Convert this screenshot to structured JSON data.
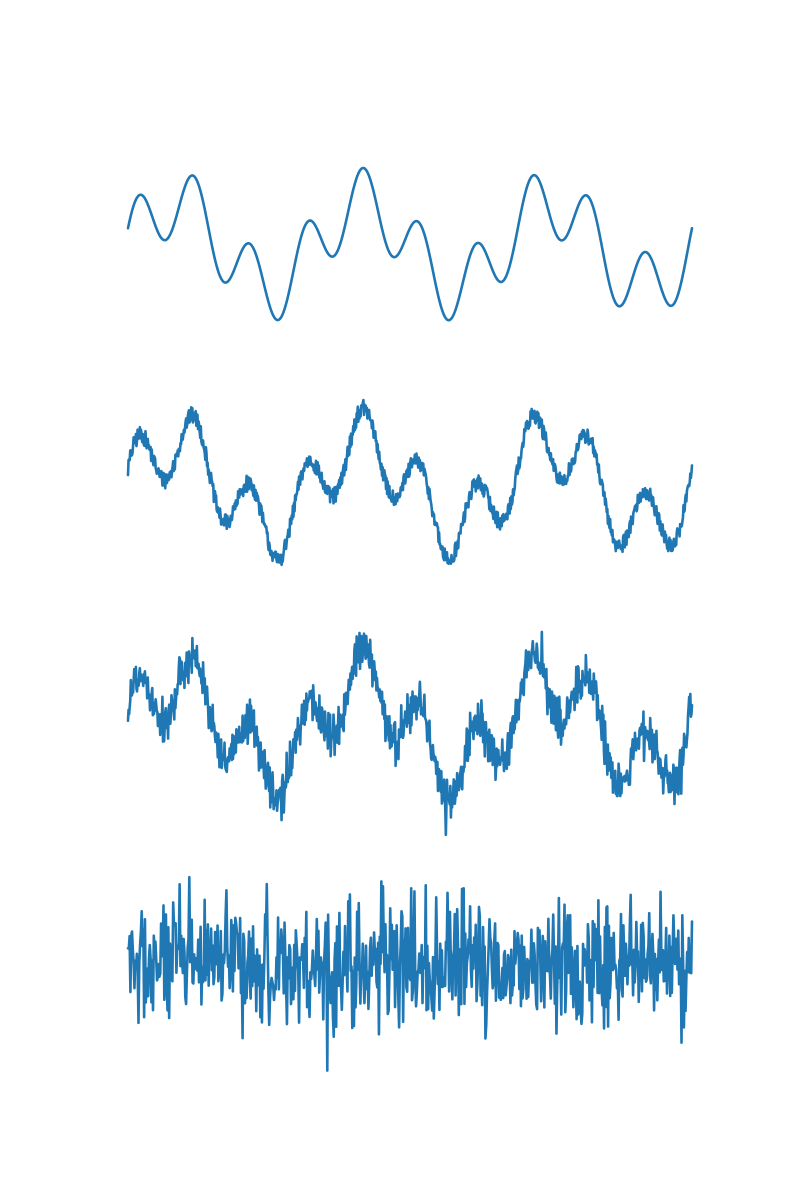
{
  "chart_data": [
    {
      "type": "line",
      "title": "",
      "xlabel": "",
      "ylabel": "",
      "axes_visible": false,
      "grid": false,
      "legend": "none",
      "color": "#1f77b4",
      "x_range": [
        0,
        1
      ],
      "ylim": [
        -1.5,
        1.5
      ],
      "signal": {
        "components": [
          {
            "amplitude": 0.6,
            "cycles": 3,
            "phase": 0
          },
          {
            "amplitude": 0.5,
            "cycles": 10,
            "phase": 0.5
          }
        ],
        "noise_amplitude": 0,
        "noise_mode": "none",
        "samples": 1000
      }
    },
    {
      "type": "line",
      "title": "",
      "xlabel": "",
      "ylabel": "",
      "axes_visible": false,
      "grid": false,
      "legend": "none",
      "color": "#1f77b4",
      "x_range": [
        0,
        1
      ],
      "ylim": [
        -1.5,
        1.5
      ],
      "signal": {
        "components": [
          {
            "amplitude": 0.6,
            "cycles": 3,
            "phase": 0
          },
          {
            "amplitude": 0.5,
            "cycles": 10,
            "phase": 0.5
          }
        ],
        "noise_amplitude": 0.12,
        "noise_mode": "flicker",
        "samples": 1000
      }
    },
    {
      "type": "line",
      "title": "",
      "xlabel": "",
      "ylabel": "",
      "axes_visible": false,
      "grid": false,
      "legend": "none",
      "color": "#1f77b4",
      "x_range": [
        0,
        1
      ],
      "ylim": [
        -1.5,
        1.5
      ],
      "signal": {
        "components": [
          {
            "amplitude": 0.6,
            "cycles": 3,
            "phase": 0
          },
          {
            "amplitude": 0.5,
            "cycles": 10,
            "phase": 0.5
          }
        ],
        "noise_amplitude": 0.35,
        "noise_mode": "spiky",
        "samples": 1000
      }
    },
    {
      "type": "line",
      "title": "",
      "xlabel": "",
      "ylabel": "",
      "axes_visible": false,
      "grid": false,
      "legend": "none",
      "color": "#1f77b4",
      "x_range": [
        0,
        1
      ],
      "ylim": [
        -1.5,
        1.5
      ],
      "signal": {
        "components": [],
        "noise_amplitude": 1.0,
        "noise_mode": "spiky",
        "samples": 700
      }
    }
  ]
}
